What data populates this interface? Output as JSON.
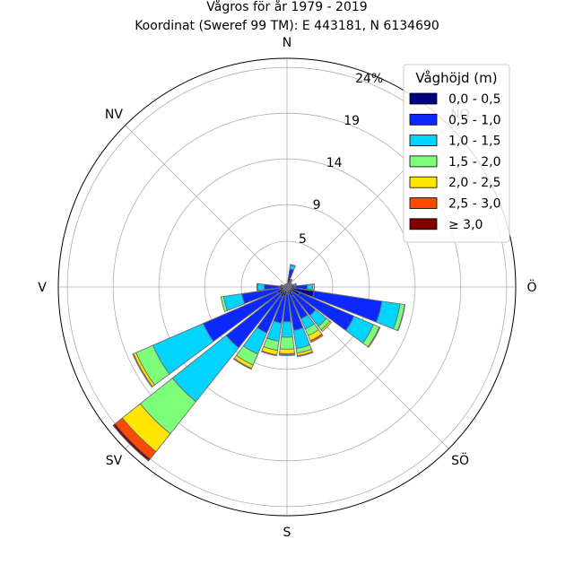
{
  "chart_data": {
    "type": "windrose",
    "title_line1": "Vågros för år 1979 - 2019",
    "title_line2": "Koordinat (Sweref 99 TM): E 443181, N 6134690",
    "directions": [
      "N",
      "NO",
      "Ö",
      "SÖ",
      "S",
      "SV",
      "V",
      "NV"
    ],
    "radial_ticks": [
      "5",
      "9",
      "14",
      "19",
      "24%"
    ],
    "radial_tick_values": [
      5,
      9,
      14,
      19,
      24
    ],
    "rmax": 25,
    "legend_title": "Våghöjd (m)",
    "bins": [
      {
        "name": "0,0 - 0,5",
        "color": "#000080"
      },
      {
        "name": "0,5 - 1,0",
        "color": "#0a28ff"
      },
      {
        "name": "1,0 - 1,5",
        "color": "#00d4ff"
      },
      {
        "name": "1,5 - 2,0",
        "color": "#7dff7a"
      },
      {
        "name": "2,0 - 2,5",
        "color": "#ffe600"
      },
      {
        "name": "2,5 - 3,0",
        "color": "#ff4a00"
      },
      {
        "name": "≥ 3,0",
        "color": "#800000"
      }
    ],
    "sector_angles_deg": [
      0,
      15,
      30,
      45,
      60,
      75,
      90,
      105,
      120,
      135,
      150,
      165,
      180,
      195,
      210,
      225,
      240,
      255,
      270,
      285,
      300,
      315,
      330,
      345
    ],
    "sector_width_deg": 13,
    "cumulative": [
      [
        0.2,
        0.3,
        0.35,
        0.38,
        0.38,
        0.38,
        0.38
      ],
      [
        1.0,
        2.0,
        2.4,
        2.5,
        2.5,
        2.5,
        2.5
      ],
      [
        0.5,
        0.8,
        0.9,
        0.95,
        0.95,
        0.95,
        0.95
      ],
      [
        0.3,
        0.5,
        0.55,
        0.6,
        0.6,
        0.6,
        0.6
      ],
      [
        0.3,
        0.5,
        0.6,
        0.62,
        0.62,
        0.62,
        0.62
      ],
      [
        0.4,
        0.8,
        1.0,
        1.05,
        1.05,
        1.05,
        1.05
      ],
      [
        0.8,
        2.2,
        2.8,
        3.0,
        3.0,
        3.0,
        3.0
      ],
      [
        3.0,
        10.5,
        12.5,
        13.0,
        13.05,
        13.05,
        13.05
      ],
      [
        1.5,
        8.0,
        10.3,
        11.0,
        11.1,
        11.1,
        11.1
      ],
      [
        0.8,
        4.0,
        5.5,
        6.0,
        6.2,
        6.2,
        6.2
      ],
      [
        1.1,
        3.8,
        5.0,
        5.8,
        6.4,
        6.6,
        6.6
      ],
      [
        0.8,
        4.8,
        6.8,
        7.3,
        7.6,
        7.7,
        7.7
      ],
      [
        0.7,
        3.8,
        5.5,
        6.8,
        7.3,
        7.5,
        7.5
      ],
      [
        1.0,
        4.0,
        6.0,
        7.0,
        7.5,
        7.6,
        7.6
      ],
      [
        1.2,
        5.5,
        8.0,
        9.3,
        9.7,
        9.8,
        9.8
      ],
      [
        1.0,
        8.5,
        16.0,
        20.5,
        23.0,
        24.0,
        24.3
      ],
      [
        1.2,
        10.0,
        16.0,
        18.0,
        18.3,
        18.4,
        18.4
      ],
      [
        0.8,
        5.0,
        7.0,
        7.3,
        7.3,
        7.3,
        7.3
      ],
      [
        0.8,
        2.5,
        3.2,
        3.3,
        3.3,
        3.3,
        3.3
      ],
      [
        0.3,
        0.6,
        0.7,
        0.7,
        0.7,
        0.7,
        0.7
      ],
      [
        0.2,
        0.3,
        0.35,
        0.35,
        0.35,
        0.35,
        0.35
      ],
      [
        0.2,
        0.3,
        0.35,
        0.35,
        0.35,
        0.35,
        0.35
      ],
      [
        0.2,
        0.3,
        0.35,
        0.35,
        0.35,
        0.35,
        0.35
      ],
      [
        0.2,
        0.3,
        0.35,
        0.35,
        0.35,
        0.35,
        0.35
      ]
    ]
  }
}
